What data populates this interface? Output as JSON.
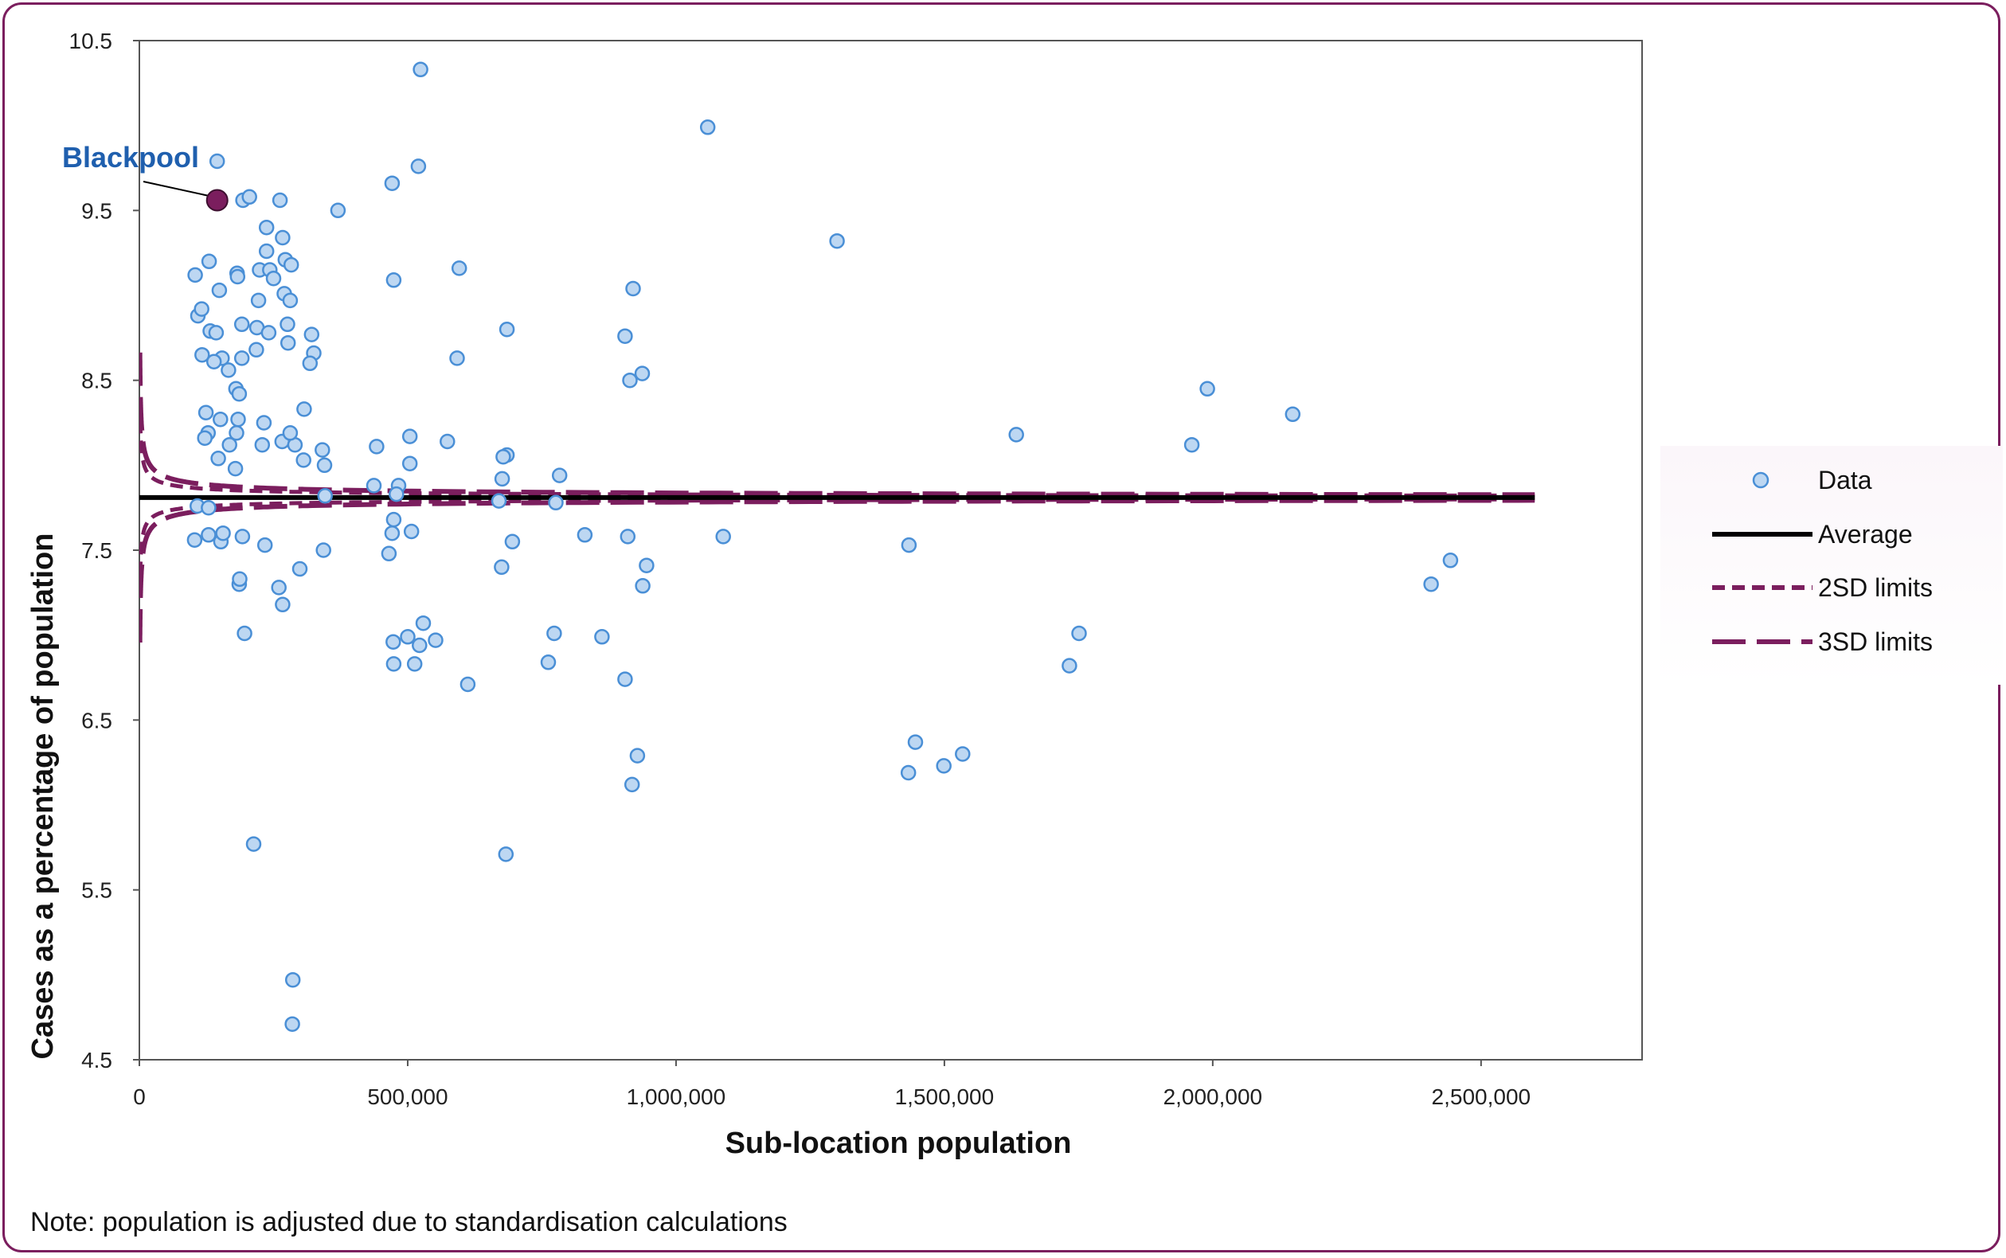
{
  "chart_data": {
    "type": "scatter",
    "xlabel": "Sub-location population",
    "ylabel": "Cases as a percentage of population",
    "note": "Note: population is adjusted due to standardisation calculations",
    "xlim": [
      0,
      2800000
    ],
    "ylim": [
      4.5,
      10.5
    ],
    "xticks": [
      0,
      500000,
      1000000,
      1500000,
      2000000,
      2500000
    ],
    "xtick_labels": [
      "0",
      "500,000",
      "1,000,000",
      "1,500,000",
      "2,000,000",
      "2,500,000"
    ],
    "yticks": [
      4.5,
      5.5,
      6.5,
      7.5,
      8.5,
      9.5,
      10.5
    ],
    "ytick_labels": [
      "4.5",
      "5.5",
      "6.5",
      "7.5",
      "8.5",
      "9.5",
      "10.5"
    ],
    "grid": false,
    "legend_position": "right",
    "average": 7.81,
    "sd_coefficient": 9.0,
    "control_x_range": [
      1000,
      2600000
    ],
    "legend": [
      "Data",
      "Average",
      "2SD limits",
      "3SD limits"
    ],
    "colors": {
      "data_fill": "#bdd7f2",
      "data_stroke": "#4a8fd6",
      "average": "#000000",
      "limits": "#7b1e5e",
      "annotation": "#1f5fae",
      "frame": "#7b1e5e"
    },
    "annotation": {
      "label": "Blackpool",
      "x": 145000,
      "y": 9.56
    },
    "series": [
      {
        "name": "Data",
        "points": [
          [
            145000,
            9.79
          ],
          [
            193000,
            9.56
          ],
          [
            205000,
            9.58
          ],
          [
            262000,
            9.56
          ],
          [
            370000,
            9.5
          ],
          [
            237000,
            9.4
          ],
          [
            267000,
            9.34
          ],
          [
            237000,
            9.26
          ],
          [
            272000,
            9.21
          ],
          [
            283000,
            9.18
          ],
          [
            130000,
            9.2
          ],
          [
            104000,
            9.12
          ],
          [
            182000,
            9.13
          ],
          [
            224000,
            9.15
          ],
          [
            243000,
            9.15
          ],
          [
            250000,
            9.1
          ],
          [
            183000,
            9.11
          ],
          [
            149000,
            9.03
          ],
          [
            270000,
            9.01
          ],
          [
            222000,
            8.97
          ],
          [
            281000,
            8.97
          ],
          [
            109000,
            8.88
          ],
          [
            116000,
            8.92
          ],
          [
            191000,
            8.83
          ],
          [
            219000,
            8.81
          ],
          [
            276000,
            8.83
          ],
          [
            132000,
            8.79
          ],
          [
            143000,
            8.78
          ],
          [
            241000,
            8.78
          ],
          [
            321000,
            8.77
          ],
          [
            117000,
            8.65
          ],
          [
            154000,
            8.63
          ],
          [
            191000,
            8.63
          ],
          [
            218000,
            8.68
          ],
          [
            277000,
            8.72
          ],
          [
            325000,
            8.66
          ],
          [
            139000,
            8.61
          ],
          [
            166000,
            8.56
          ],
          [
            318000,
            8.6
          ],
          [
            180000,
            8.45
          ],
          [
            186000,
            8.42
          ],
          [
            124000,
            8.31
          ],
          [
            151000,
            8.27
          ],
          [
            184000,
            8.27
          ],
          [
            232000,
            8.25
          ],
          [
            128000,
            8.19
          ],
          [
            181000,
            8.19
          ],
          [
            122000,
            8.16
          ],
          [
            168000,
            8.12
          ],
          [
            229000,
            8.12
          ],
          [
            266000,
            8.14
          ],
          [
            290000,
            8.12
          ],
          [
            307000,
            8.33
          ],
          [
            281000,
            8.19
          ],
          [
            147000,
            8.04
          ],
          [
            179000,
            7.98
          ],
          [
            306000,
            8.03
          ],
          [
            341000,
            8.09
          ],
          [
            345000,
            8.0
          ],
          [
            346000,
            7.82
          ],
          [
            108000,
            7.76
          ],
          [
            129000,
            7.75
          ],
          [
            103000,
            7.56
          ],
          [
            129000,
            7.59
          ],
          [
            152000,
            7.55
          ],
          [
            156000,
            7.6
          ],
          [
            192000,
            7.58
          ],
          [
            234000,
            7.53
          ],
          [
            186000,
            7.3
          ],
          [
            187000,
            7.33
          ],
          [
            260000,
            7.28
          ],
          [
            267000,
            7.18
          ],
          [
            299000,
            7.39
          ],
          [
            343000,
            7.5
          ],
          [
            196000,
            7.01
          ],
          [
            213000,
            5.77
          ],
          [
            286000,
            4.97
          ],
          [
            285000,
            4.71
          ],
          [
            524000,
            10.33
          ],
          [
            471000,
            9.66
          ],
          [
            520000,
            9.76
          ],
          [
            474000,
            9.09
          ],
          [
            596000,
            9.16
          ],
          [
            592000,
            8.63
          ],
          [
            504000,
            8.17
          ],
          [
            574000,
            8.14
          ],
          [
            442000,
            8.11
          ],
          [
            504000,
            8.01
          ],
          [
            437000,
            7.88
          ],
          [
            483000,
            7.88
          ],
          [
            479000,
            7.83
          ],
          [
            474000,
            7.68
          ],
          [
            471000,
            7.6
          ],
          [
            507000,
            7.61
          ],
          [
            465000,
            7.48
          ],
          [
            473000,
            6.96
          ],
          [
            500000,
            6.99
          ],
          [
            529000,
            7.07
          ],
          [
            522000,
            6.94
          ],
          [
            552000,
            6.97
          ],
          [
            474000,
            6.83
          ],
          [
            513000,
            6.83
          ],
          [
            612000,
            6.71
          ],
          [
            685000,
            8.8
          ],
          [
            685000,
            8.06
          ],
          [
            678000,
            8.05
          ],
          [
            676000,
            7.92
          ],
          [
            670000,
            7.79
          ],
          [
            695000,
            7.55
          ],
          [
            675000,
            7.4
          ],
          [
            783000,
            7.94
          ],
          [
            776000,
            7.78
          ],
          [
            830000,
            7.59
          ],
          [
            773000,
            7.01
          ],
          [
            762000,
            6.84
          ],
          [
            862000,
            6.99
          ],
          [
            905000,
            8.76
          ],
          [
            914000,
            8.5
          ],
          [
            920000,
            9.04
          ],
          [
            937000,
            8.54
          ],
          [
            910000,
            7.58
          ],
          [
            945000,
            7.41
          ],
          [
            938000,
            7.29
          ],
          [
            905000,
            6.74
          ],
          [
            928000,
            6.29
          ],
          [
            918000,
            6.12
          ],
          [
            683000,
            5.71
          ],
          [
            1059000,
            9.99
          ],
          [
            1300000,
            9.32
          ],
          [
            1088000,
            7.58
          ],
          [
            1434000,
            7.53
          ],
          [
            1446000,
            6.37
          ],
          [
            1433000,
            6.19
          ],
          [
            1499000,
            6.23
          ],
          [
            1534000,
            6.3
          ],
          [
            1634000,
            8.18
          ],
          [
            1751000,
            7.01
          ],
          [
            1733000,
            6.82
          ],
          [
            1961000,
            8.12
          ],
          [
            1990000,
            8.45
          ],
          [
            2149000,
            8.3
          ],
          [
            2407000,
            7.3
          ],
          [
            2443000,
            7.44
          ]
        ]
      }
    ]
  }
}
